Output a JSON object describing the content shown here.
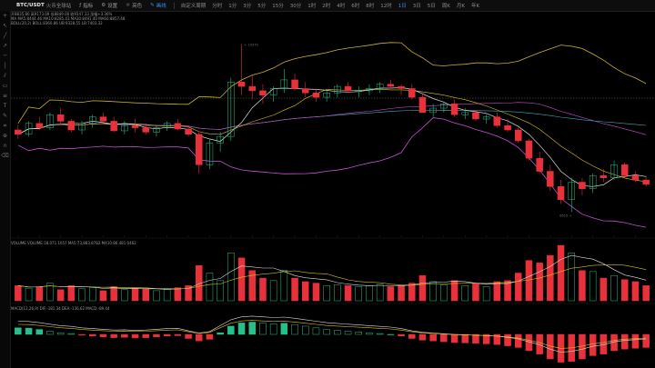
{
  "toolbar": {
    "symbol": "BTC/USDT",
    "symbol_sub": "火币全球站",
    "indicators": "指标",
    "settings": "设置",
    "theme": "亮色",
    "draw": "画线",
    "custom_period": "自定义周期",
    "timeframes": [
      "分时",
      "1分",
      "3分",
      "5分",
      "15分",
      "30分",
      "1时",
      "2时",
      "4时",
      "6时",
      "8时",
      "12时",
      "1日",
      "3日",
      "5日",
      "周K",
      "月K",
      "年K"
    ],
    "active_timeframe": "1日"
  },
  "legend_main": {
    "ohlc": "开8835.80 高9173.09 低8849.00 收9147.33 涨幅+3.36%",
    "ma": "MA  MA5:8444.46 MA10:8285.43 MA30:8491.40 MA60:8857.48",
    "boll": "BOLL(20,2)  BOLL:8360.86 UB:9328.55 LB:7403.32"
  },
  "legend_volume": "VOLUME  VOLUME:18,071.1057 MA5:73,883.8782 MA10:86,481.0462",
  "legend_macd": "MACD(12,26,9)  DIF:-181.34 DEA:-136.62 MACD:-89.44",
  "price_labels": {
    "high": "10370",
    "low": "6515"
  },
  "colors": {
    "up": "#26c08a",
    "down": "#e8313a",
    "ma5": "#e0e0e0",
    "ma10": "#d8c21a",
    "ma30": "#c64fd0",
    "ma60": "#3aa9c0",
    "boll": "#c9b234"
  },
  "chart_data": {
    "type": "candlestick",
    "days": 60,
    "price_range": [
      6000,
      10800
    ],
    "candles": [
      {
        "o": 8400,
        "h": 8520,
        "l": 8200,
        "c": 8300
      },
      {
        "o": 8300,
        "h": 8600,
        "l": 8250,
        "c": 8550
      },
      {
        "o": 8550,
        "h": 8700,
        "l": 8400,
        "c": 8450
      },
      {
        "o": 8450,
        "h": 8800,
        "l": 8400,
        "c": 8750
      },
      {
        "o": 8750,
        "h": 8900,
        "l": 8500,
        "c": 8600
      },
      {
        "o": 8600,
        "h": 8650,
        "l": 8350,
        "c": 8400
      },
      {
        "o": 8400,
        "h": 8600,
        "l": 8300,
        "c": 8550
      },
      {
        "o": 8550,
        "h": 8750,
        "l": 8450,
        "c": 8700
      },
      {
        "o": 8700,
        "h": 8800,
        "l": 8550,
        "c": 8600
      },
      {
        "o": 8600,
        "h": 8700,
        "l": 8350,
        "c": 8380
      },
      {
        "o": 8380,
        "h": 8600,
        "l": 8300,
        "c": 8500
      },
      {
        "o": 8500,
        "h": 8650,
        "l": 8350,
        "c": 8450
      },
      {
        "o": 8450,
        "h": 8550,
        "l": 8300,
        "c": 8350
      },
      {
        "o": 8350,
        "h": 8500,
        "l": 8250,
        "c": 8450
      },
      {
        "o": 8450,
        "h": 8600,
        "l": 8380,
        "c": 8550
      },
      {
        "o": 8550,
        "h": 8650,
        "l": 8400,
        "c": 8420
      },
      {
        "o": 8420,
        "h": 8500,
        "l": 8250,
        "c": 8300
      },
      {
        "o": 8300,
        "h": 8350,
        "l": 7400,
        "c": 7600
      },
      {
        "o": 7600,
        "h": 8200,
        "l": 7500,
        "c": 8100
      },
      {
        "o": 8100,
        "h": 8350,
        "l": 7900,
        "c": 8250
      },
      {
        "o": 8250,
        "h": 9600,
        "l": 8150,
        "c": 9500
      },
      {
        "o": 9500,
        "h": 10370,
        "l": 9200,
        "c": 9400
      },
      {
        "o": 9400,
        "h": 9650,
        "l": 9100,
        "c": 9300
      },
      {
        "o": 9300,
        "h": 9450,
        "l": 9000,
        "c": 9200
      },
      {
        "o": 9200,
        "h": 9400,
        "l": 9050,
        "c": 9350
      },
      {
        "o": 9350,
        "h": 9800,
        "l": 9250,
        "c": 9550
      },
      {
        "o": 9550,
        "h": 9700,
        "l": 9300,
        "c": 9350
      },
      {
        "o": 9350,
        "h": 9500,
        "l": 9150,
        "c": 9250
      },
      {
        "o": 9250,
        "h": 9350,
        "l": 9050,
        "c": 9150
      },
      {
        "o": 9150,
        "h": 9300,
        "l": 9050,
        "c": 9250
      },
      {
        "o": 9250,
        "h": 9450,
        "l": 9150,
        "c": 9400
      },
      {
        "o": 9400,
        "h": 9500,
        "l": 9250,
        "c": 9300
      },
      {
        "o": 9300,
        "h": 9400,
        "l": 9150,
        "c": 9300
      },
      {
        "o": 9300,
        "h": 9450,
        "l": 9200,
        "c": 9350
      },
      {
        "o": 9350,
        "h": 9500,
        "l": 9250,
        "c": 9450
      },
      {
        "o": 9450,
        "h": 9550,
        "l": 9350,
        "c": 9400
      },
      {
        "o": 9400,
        "h": 9450,
        "l": 9200,
        "c": 9350
      },
      {
        "o": 9350,
        "h": 9450,
        "l": 9100,
        "c": 9150
      },
      {
        "o": 9150,
        "h": 9250,
        "l": 8800,
        "c": 8800
      },
      {
        "o": 8800,
        "h": 9000,
        "l": 8700,
        "c": 8900
      },
      {
        "o": 8900,
        "h": 9050,
        "l": 8800,
        "c": 9000
      },
      {
        "o": 9000,
        "h": 9100,
        "l": 8700,
        "c": 8750
      },
      {
        "o": 8750,
        "h": 8900,
        "l": 8650,
        "c": 8800
      },
      {
        "o": 8800,
        "h": 8850,
        "l": 8600,
        "c": 8650
      },
      {
        "o": 8650,
        "h": 8750,
        "l": 8550,
        "c": 8700
      },
      {
        "o": 8700,
        "h": 8800,
        "l": 8450,
        "c": 8500
      },
      {
        "o": 8500,
        "h": 8650,
        "l": 8350,
        "c": 8400
      },
      {
        "o": 8400,
        "h": 8450,
        "l": 8100,
        "c": 8150
      },
      {
        "o": 8150,
        "h": 8200,
        "l": 7700,
        "c": 7750
      },
      {
        "o": 7750,
        "h": 7900,
        "l": 7400,
        "c": 7450
      },
      {
        "o": 7450,
        "h": 7600,
        "l": 7000,
        "c": 7100
      },
      {
        "o": 7100,
        "h": 7250,
        "l": 6700,
        "c": 6800
      },
      {
        "o": 6800,
        "h": 7300,
        "l": 6515,
        "c": 7200
      },
      {
        "o": 7200,
        "h": 7300,
        "l": 6900,
        "c": 7050
      },
      {
        "o": 7050,
        "h": 7400,
        "l": 6950,
        "c": 7350
      },
      {
        "o": 7350,
        "h": 7500,
        "l": 7200,
        "c": 7300
      },
      {
        "o": 7300,
        "h": 7700,
        "l": 7250,
        "c": 7600
      },
      {
        "o": 7600,
        "h": 7650,
        "l": 7300,
        "c": 7350
      },
      {
        "o": 7350,
        "h": 7450,
        "l": 7200,
        "c": 7250
      },
      {
        "o": 7250,
        "h": 7350,
        "l": 7100,
        "c": 7150
      }
    ],
    "volume": [
      30,
      25,
      28,
      35,
      22,
      30,
      24,
      26,
      20,
      28,
      22,
      25,
      24,
      20,
      22,
      26,
      30,
      70,
      55,
      40,
      95,
      85,
      60,
      45,
      40,
      60,
      45,
      38,
      35,
      30,
      32,
      30,
      28,
      30,
      33,
      28,
      30,
      35,
      50,
      38,
      32,
      40,
      30,
      34,
      28,
      38,
      40,
      55,
      80,
      75,
      90,
      110,
      95,
      60,
      58,
      45,
      50,
      42,
      38,
      30
    ],
    "macd": [
      40,
      38,
      30,
      20,
      10,
      5,
      -5,
      -10,
      -15,
      -20,
      -18,
      -22,
      -20,
      -15,
      -10,
      -8,
      -25,
      -40,
      -30,
      10,
      50,
      70,
      75,
      70,
      65,
      68,
      60,
      50,
      40,
      30,
      25,
      20,
      15,
      10,
      5,
      0,
      -10,
      -25,
      -35,
      -40,
      -45,
      -50,
      -52,
      -55,
      -58,
      -62,
      -70,
      -80,
      -100,
      -120,
      -150,
      -170,
      -165,
      -150,
      -130,
      -120,
      -100,
      -90,
      -85,
      -80
    ]
  }
}
